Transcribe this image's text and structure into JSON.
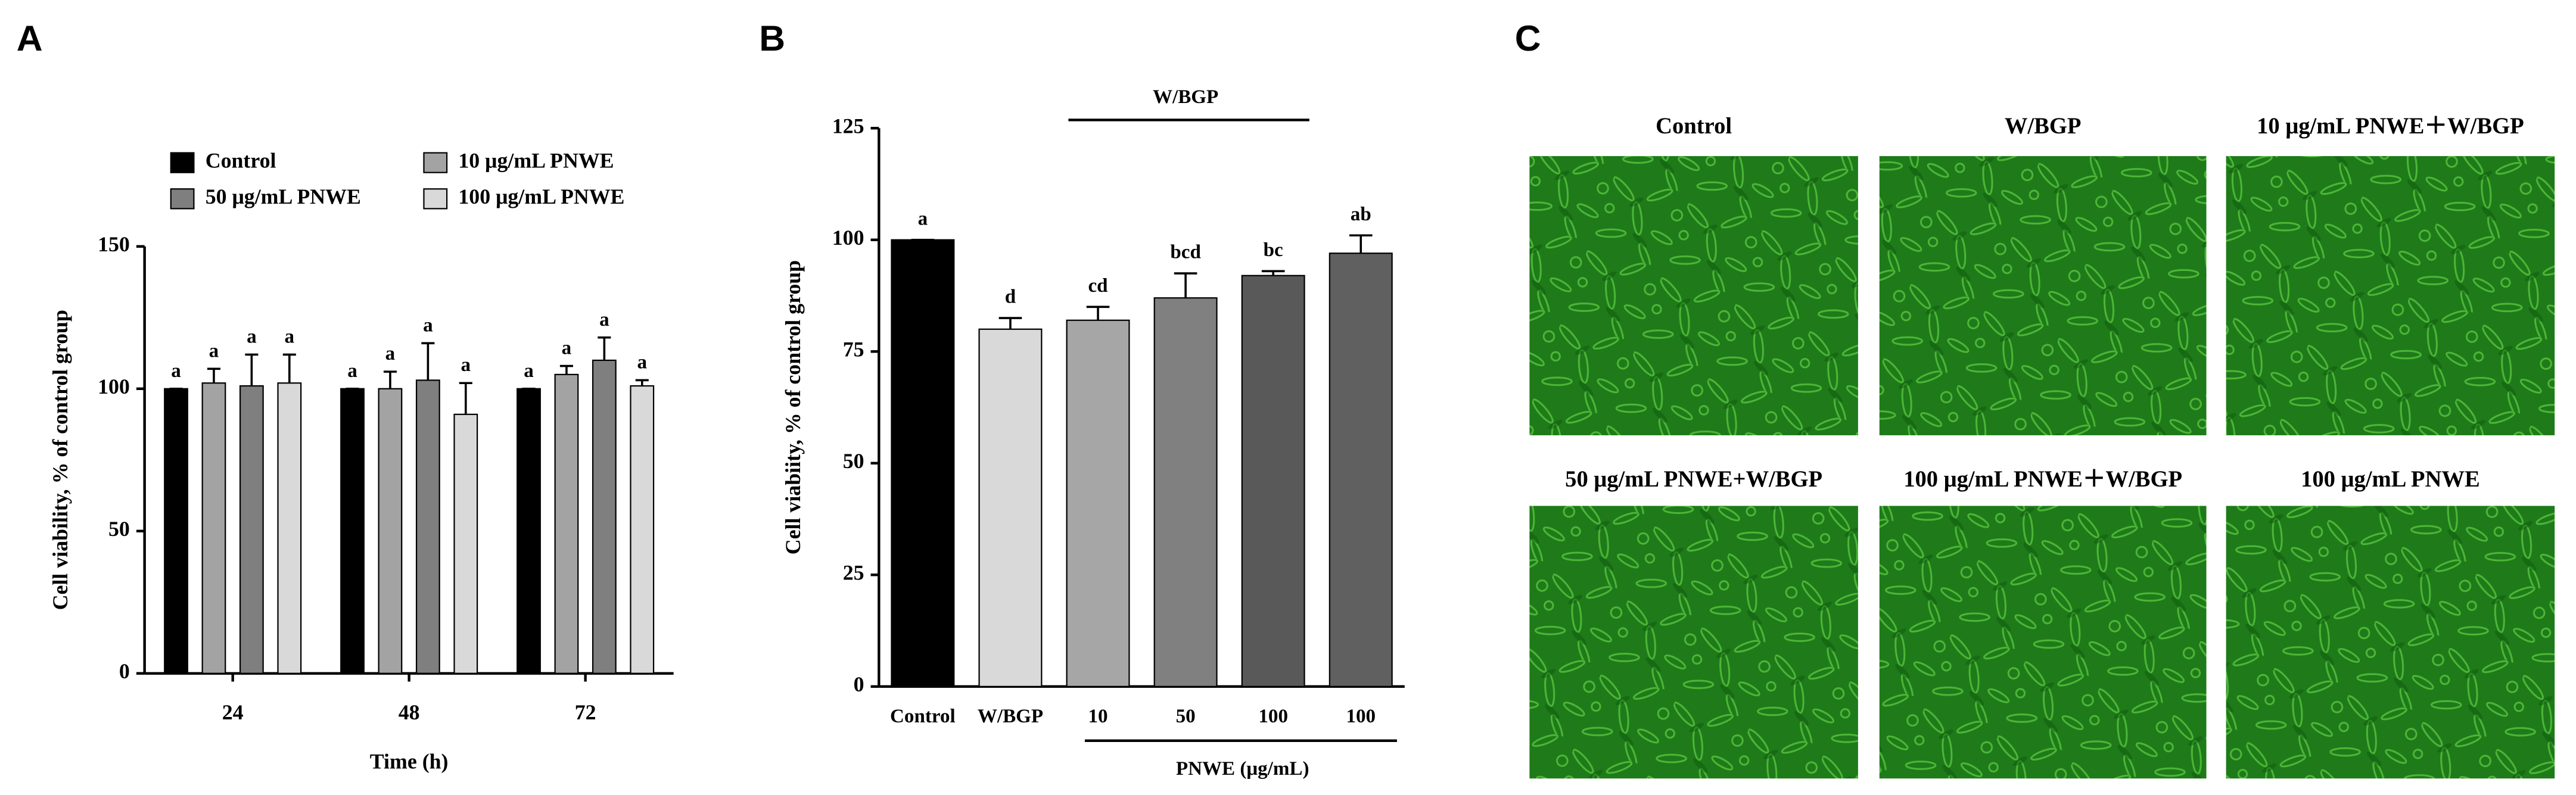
{
  "chart_data": [
    {
      "type": "grouped-bar-errors",
      "panel": "A",
      "x_label": "Time (h)",
      "y_label": "Cell viability, % of control group",
      "categories": [
        "24",
        "48",
        "72"
      ],
      "series": [
        {
          "name": "Control",
          "color": "#000000",
          "values": [
            100,
            100,
            100
          ],
          "errors": [
            0,
            0,
            0
          ],
          "letters": [
            "a",
            "a",
            "a"
          ]
        },
        {
          "name": "10 μg/mL PNWE",
          "color": "#a3a3a3",
          "values": [
            102,
            100,
            105
          ],
          "errors": [
            5,
            6,
            3
          ],
          "letters": [
            "a",
            "a",
            "a"
          ]
        },
        {
          "name": "50 μg/mL PNWE",
          "color": "#7f7f7f",
          "values": [
            101,
            103,
            110
          ],
          "errors": [
            11,
            13,
            8
          ],
          "letters": [
            "a",
            "a",
            "a"
          ]
        },
        {
          "name": "100 μg/mL PNWE",
          "color": "#d9d9d9",
          "values": [
            102,
            91,
            101
          ],
          "errors": [
            10,
            11,
            2
          ],
          "letters": [
            "a",
            "a",
            "a"
          ]
        }
      ],
      "ylim": [
        0,
        150
      ],
      "yticks": [
        0,
        50,
        100,
        150
      ]
    },
    {
      "type": "bar-errors",
      "panel": "B",
      "y_label": "Cell viabiity, % of control group",
      "categories": [
        "Control",
        "W/BGP",
        "10",
        "50",
        "100",
        "100"
      ],
      "values": [
        100,
        80,
        82,
        87,
        92,
        97
      ],
      "errors": [
        0,
        2.5,
        3,
        5.5,
        1,
        4
      ],
      "letters": [
        "a",
        "d",
        "cd",
        "bcd",
        "bc",
        "ab"
      ],
      "colors": [
        "#000000",
        "#d9d9d9",
        "#a6a6a6",
        "#808080",
        "#595959",
        "#606060"
      ],
      "top_bracket_label": "W/BGP",
      "bottom_bracket_label": "PNWE (μg/mL)",
      "ylim": [
        0,
        125
      ],
      "yticks": [
        0,
        25,
        50,
        75,
        100,
        125
      ]
    }
  ],
  "panel_c": {
    "panel": "C",
    "images": [
      {
        "label": "Control"
      },
      {
        "label": "W/BGP"
      },
      {
        "label": "10 μg/mL PNWE＋W/BGP"
      },
      {
        "label": "50 μg/mL PNWE+W/BGP"
      },
      {
        "label": "100 μg/mL PNWE＋W/BGP"
      },
      {
        "label": "100 μg/mL PNWE"
      }
    ]
  }
}
